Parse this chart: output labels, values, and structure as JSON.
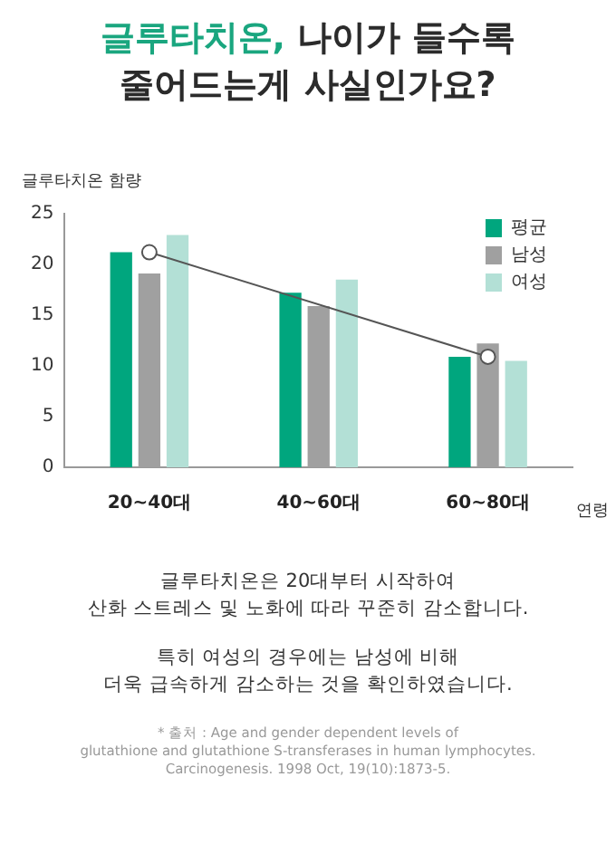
{
  "chart_data": {
    "type": "bar",
    "title": "글루타치온, 나이가 들수록\n줄어드는게 사실인가요?",
    "ylabel": "글루타치온 함량",
    "xlabel": "연령",
    "categories": [
      "20~40대",
      "40~60대",
      "60~80대"
    ],
    "series": [
      {
        "name": "평균",
        "color": "#00a67e",
        "values": [
          21.2,
          17.2,
          10.9
        ]
      },
      {
        "name": "남성",
        "color": "#a0a0a0",
        "values": [
          19.1,
          15.9,
          12.2
        ]
      },
      {
        "name": "여성",
        "color": "#b3e0d6",
        "values": [
          22.9,
          18.5,
          10.5
        ]
      },
      {
        "type": "line",
        "color": "#555555",
        "x": [
          "20~40대",
          "60~80대"
        ],
        "values": [
          21.2,
          10.9
        ],
        "marker": "circle"
      }
    ],
    "ylim": [
      0,
      25
    ],
    "yticks": [
      0,
      5,
      10,
      15,
      20,
      25
    ],
    "grid": false,
    "legend": "top right",
    "annotations": [
      "글루타치온은 20대부터 시작하여\n산화 스트레스 및 노화에 따라 꾸준히 감소합니다.",
      "특히 여성의 경우에는 남성에 비해\n더욱 급속하게 감소하는 것을 확인하였습니다.",
      "* 출처 : Age and gender dependent levels of\nglutathione and glutathione S-transferases in human lymphocytes.\nCarcinogenesis. 1998 Oct, 19(10):1873-5."
    ]
  }
}
